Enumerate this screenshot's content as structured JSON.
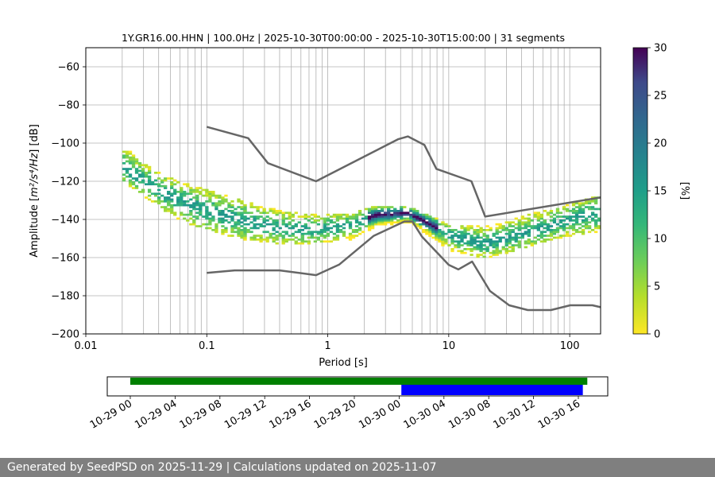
{
  "chart_data": {
    "type": "heatmap",
    "title": "1Y.GR16.00.HHN | 100.0Hz | 2025-10-30T00:00:00 - 2025-10-30T15:00:00 | 31 segments",
    "xlabel": "Period [s]",
    "ylabel_prefix": "Amplitude [",
    "ylabel_math": "m²/s⁴/Hz",
    "ylabel_suffix": "] [dB]",
    "xscale": "log",
    "xlim": [
      0.01,
      180
    ],
    "ylim": [
      -200,
      -50
    ],
    "xticks": [
      {
        "value": 0.01,
        "label": "0.01"
      },
      {
        "value": 0.1,
        "label": "0.1"
      },
      {
        "value": 1,
        "label": "1"
      },
      {
        "value": 10,
        "label": "10"
      },
      {
        "value": 100,
        "label": "100"
      }
    ],
    "yticks": [
      -60,
      -80,
      -100,
      -120,
      -140,
      -160,
      -180,
      -200
    ],
    "ytick_labels": [
      "−60",
      "−80",
      "−100",
      "−120",
      "−140",
      "−160",
      "−180",
      "−200"
    ],
    "grid": true,
    "colormap": "viridis_r",
    "colorbar": {
      "label": "[%]",
      "range": [
        0,
        30
      ],
      "ticks": [
        "0",
        "5",
        "10",
        "15",
        "20",
        "25",
        "30"
      ]
    },
    "noise_model_color": "#666666",
    "high_noise_model": [
      {
        "x": 0.1,
        "y": -91.5
      },
      {
        "x": 0.22,
        "y": -97.4
      },
      {
        "x": 0.32,
        "y": -110.5
      },
      {
        "x": 0.8,
        "y": -120
      },
      {
        "x": 3.8,
        "y": -98
      },
      {
        "x": 4.6,
        "y": -96.5
      },
      {
        "x": 6.3,
        "y": -101
      },
      {
        "x": 7.9,
        "y": -113.5
      },
      {
        "x": 15.4,
        "y": -120
      },
      {
        "x": 20,
        "y": -138.5
      },
      {
        "x": 180,
        "y": -128.5
      }
    ],
    "low_noise_model": [
      {
        "x": 0.1,
        "y": -168
      },
      {
        "x": 0.17,
        "y": -166.7
      },
      {
        "x": 0.4,
        "y": -166.7
      },
      {
        "x": 0.8,
        "y": -169.2
      },
      {
        "x": 1.24,
        "y": -163.7
      },
      {
        "x": 2.4,
        "y": -148.6
      },
      {
        "x": 4.3,
        "y": -141.1
      },
      {
        "x": 5,
        "y": -141.1
      },
      {
        "x": 6,
        "y": -149
      },
      {
        "x": 10,
        "y": -163.8
      },
      {
        "x": 12,
        "y": -166.2
      },
      {
        "x": 15.6,
        "y": -162.1
      },
      {
        "x": 21.9,
        "y": -177.5
      },
      {
        "x": 31.6,
        "y": -185
      },
      {
        "x": 45,
        "y": -187.5
      },
      {
        "x": 70,
        "y": -187.5
      },
      {
        "x": 101,
        "y": -185
      },
      {
        "x": 154,
        "y": -185
      },
      {
        "x": 180,
        "y": -186
      }
    ],
    "psd_band": [
      {
        "period": 0.02,
        "low": -120,
        "high": -103,
        "center": -113
      },
      {
        "period": 0.03,
        "low": -128,
        "high": -112,
        "center": -120
      },
      {
        "period": 0.05,
        "low": -138,
        "high": -120,
        "center": -129
      },
      {
        "period": 0.1,
        "low": -146,
        "high": -126,
        "center": -136
      },
      {
        "period": 0.2,
        "low": -150,
        "high": -132,
        "center": -141
      },
      {
        "period": 0.4,
        "low": -153,
        "high": -137,
        "center": -145
      },
      {
        "period": 0.8,
        "low": -152,
        "high": -139,
        "center": -146
      },
      {
        "period": 1.5,
        "low": -150,
        "high": -138,
        "center": -143
      },
      {
        "period": 2.5,
        "low": -143,
        "high": -134,
        "center": -138
      },
      {
        "period": 4.5,
        "low": -141,
        "high": -134,
        "center": -137
      },
      {
        "period": 6,
        "low": -146,
        "high": -138,
        "center": -141
      },
      {
        "period": 10,
        "low": -156,
        "high": -144,
        "center": -149
      },
      {
        "period": 20,
        "low": -160,
        "high": -145,
        "center": -153
      },
      {
        "period": 50,
        "low": -153,
        "high": -138,
        "center": -146
      },
      {
        "period": 100,
        "low": -148,
        "high": -133,
        "center": -140
      },
      {
        "period": 180,
        "low": -146,
        "high": -128,
        "center": -137
      }
    ],
    "timeline": {
      "ticks": [
        "10-29 00",
        "10-29 04",
        "10-29 08",
        "10-29 12",
        "10-29 16",
        "10-29 20",
        "10-30 00",
        "10-30 04",
        "10-30 08",
        "10-30 12",
        "10-30 16"
      ],
      "available_data": {
        "start_hour": 0,
        "end_hour": 40.8,
        "color": "#008000"
      },
      "psd_data": {
        "start_hour": 24.2,
        "end_hour": 40.4,
        "color": "#0000ff"
      }
    }
  },
  "footer": "Generated by SeedPSD on 2025-11-29 | Calculations updated on 2025-11-07"
}
